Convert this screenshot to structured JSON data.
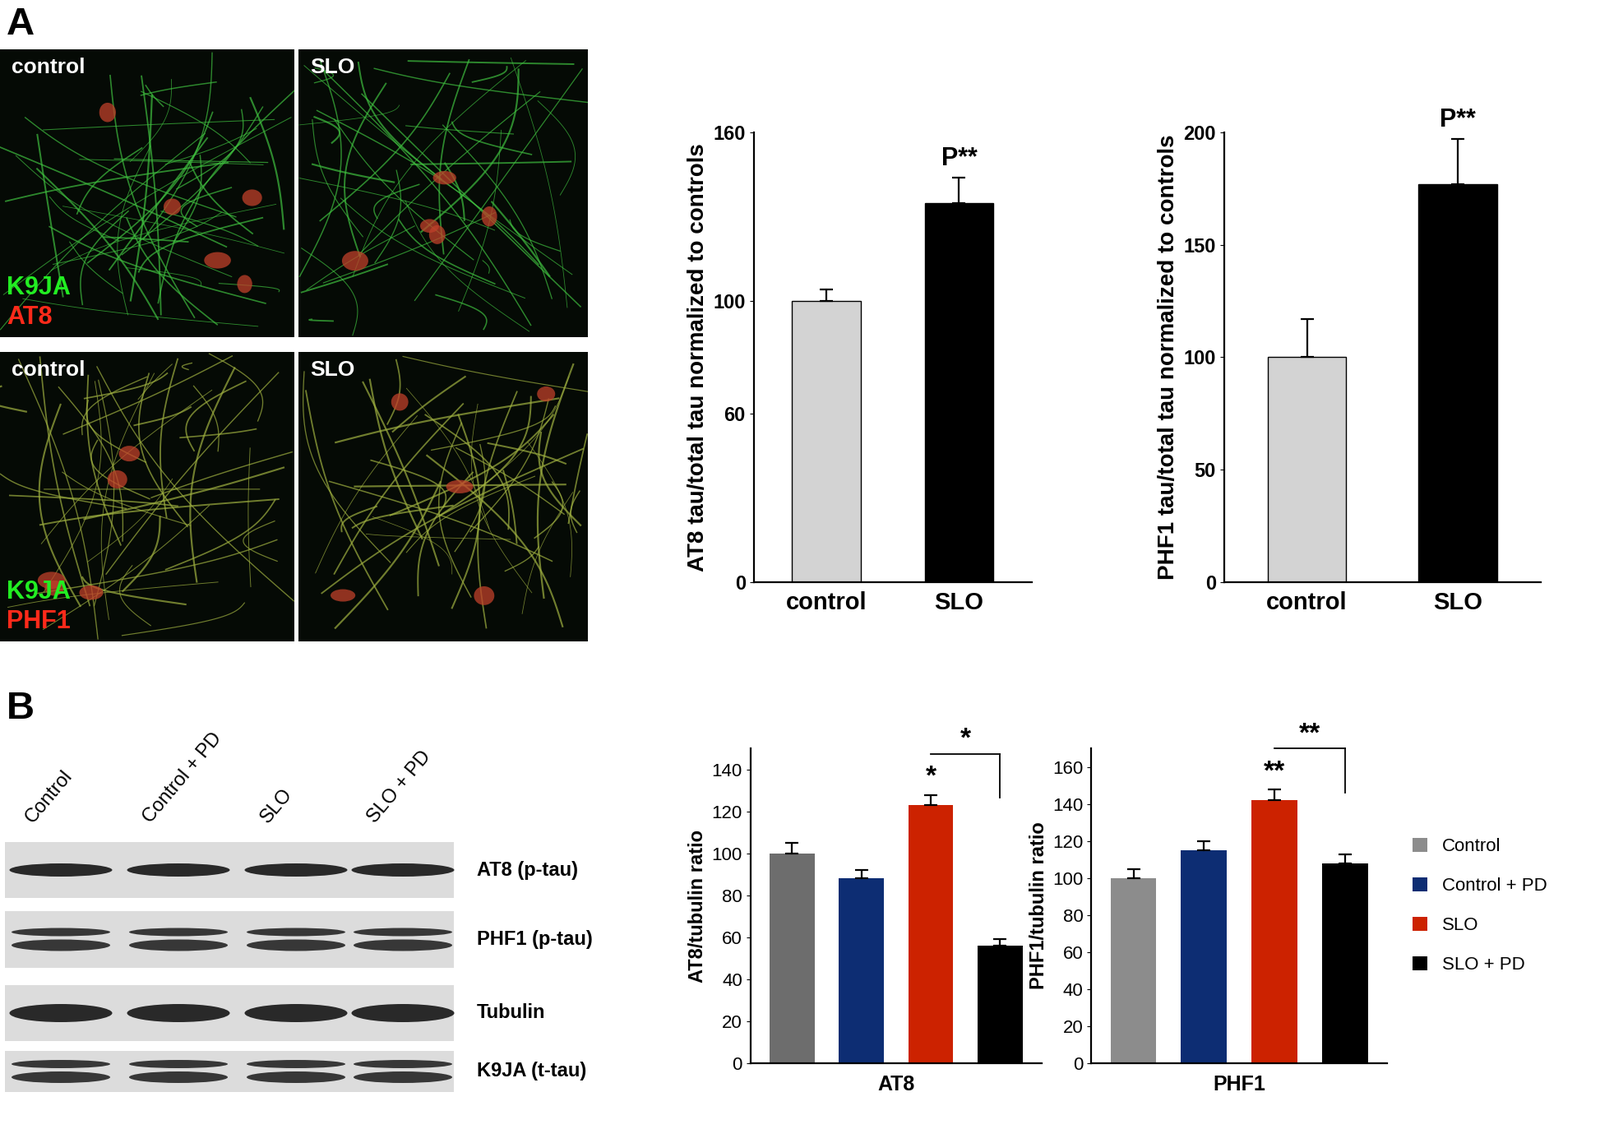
{
  "panel_labels": [
    "A",
    "B"
  ],
  "images": [
    {
      "title": "control",
      "stains": [
        "K9JA",
        "AT8"
      ]
    },
    {
      "title": "SLO"
    },
    {
      "title": "control",
      "stains": [
        "K9JA",
        "PHF1"
      ]
    },
    {
      "title": "SLO"
    }
  ],
  "blot": {
    "lanes": [
      "Control",
      "Control + PD",
      "SLO",
      "SLO + PD"
    ],
    "rows": [
      "AT8 (p-tau)",
      "PHF1 (p-tau)",
      "Tubulin",
      "K9JA (t-tau)"
    ]
  },
  "chart_data": [
    {
      "type": "bar",
      "categories": [
        "control",
        "SLO"
      ],
      "values": [
        100,
        135
      ],
      "errors": [
        4,
        9
      ],
      "colors": [
        "#d3d3d3",
        "#000000"
      ],
      "ylabel": "AT8 tau/total tau normalized to controls",
      "ylim": [
        0,
        160
      ],
      "yticks": [
        0,
        60,
        100,
        160
      ],
      "significance": [
        {
          "label": "P**",
          "bar": "SLO"
        }
      ]
    },
    {
      "type": "bar",
      "categories": [
        "control",
        "SLO"
      ],
      "values": [
        100,
        177
      ],
      "errors": [
        17,
        20
      ],
      "colors": [
        "#d3d3d3",
        "#000000"
      ],
      "ylabel": "PHF1 tau/total tau normalized to controls",
      "ylim": [
        0,
        200
      ],
      "yticks": [
        0,
        50,
        100,
        150,
        200
      ],
      "significance": [
        {
          "label": "P**",
          "bar": "SLO"
        }
      ]
    },
    {
      "type": "bar",
      "categories": [
        "Control",
        "Control + PD",
        "SLO",
        "SLO + PD"
      ],
      "values": [
        100,
        88,
        123,
        56
      ],
      "errors": [
        5,
        4,
        5,
        3
      ],
      "colors": [
        "#6d6d6d",
        "#0d2d73",
        "#cc2200",
        "#000000"
      ],
      "ylabel": "AT8/tubulin ratio",
      "xlabel": "AT8",
      "tick_labels": "y",
      "ylim": [
        0,
        150
      ],
      "yticks": [
        0,
        20,
        40,
        60,
        80,
        100,
        120,
        140
      ],
      "significance": [
        {
          "label": "*",
          "bar": "SLO"
        },
        {
          "label": "*",
          "between": [
            "SLO",
            "SLO + PD"
          ]
        }
      ]
    },
    {
      "type": "bar",
      "categories": [
        "Control",
        "Control + PD",
        "SLO",
        "SLO + PD"
      ],
      "values": [
        100,
        115,
        142,
        108
      ],
      "errors": [
        5,
        5,
        6,
        5
      ],
      "colors": [
        "#8c8c8c",
        "#0d2d73",
        "#cc2200",
        "#000000"
      ],
      "ylabel": "PHF1/tubulin ratio",
      "xlabel": "PHF1",
      "tick_labels": "y",
      "ylim": [
        0,
        170
      ],
      "yticks": [
        0,
        20,
        40,
        60,
        80,
        100,
        120,
        140,
        160
      ],
      "legend": "right",
      "significance": [
        {
          "label": "**",
          "bar": "SLO"
        },
        {
          "label": "**",
          "between": [
            "SLO",
            "SLO + PD"
          ]
        }
      ]
    }
  ]
}
